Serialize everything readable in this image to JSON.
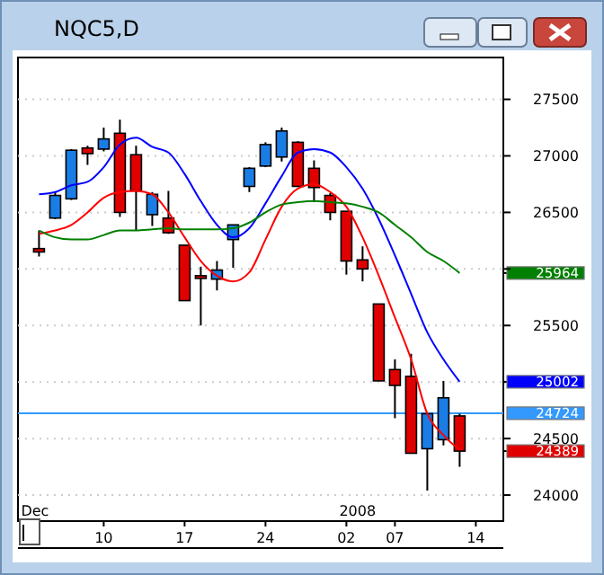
{
  "chart_data": {
    "type": "candlestick",
    "title": "NQC5,D",
    "categories": [
      null,
      null,
      null,
      null,
      null,
      "10",
      null,
      null,
      null,
      null,
      "17",
      null,
      null,
      null,
      null,
      "24",
      null,
      null,
      null,
      null,
      "02",
      null,
      null,
      "07",
      null,
      null,
      null,
      null,
      "14"
    ],
    "series": [
      {
        "ohlc": [
          null,
          [
            26180,
            26340,
            26110,
            26150
          ],
          [
            26450,
            26680,
            26440,
            26650
          ],
          [
            26620,
            27060,
            26610,
            27050
          ],
          [
            27070,
            27090,
            26920,
            27020
          ],
          [
            27060,
            27250,
            27040,
            27150
          ],
          [
            27200,
            27320,
            26460,
            26500
          ],
          [
            27010,
            27090,
            26340,
            26690
          ],
          [
            26480,
            26680,
            26380,
            26660
          ],
          [
            26450,
            26690,
            26310,
            26320
          ],
          [
            26210,
            26210,
            25720,
            25720
          ],
          [
            25940,
            26020,
            25500,
            25920
          ],
          [
            25910,
            26070,
            25810,
            25990
          ],
          [
            26260,
            26390,
            26010,
            26390
          ],
          [
            26730,
            26900,
            26680,
            26890
          ],
          [
            26910,
            27120,
            26900,
            27100
          ],
          [
            26990,
            27250,
            26950,
            27220
          ],
          [
            27120,
            27130,
            26730,
            26730
          ],
          [
            26890,
            26960,
            26590,
            26720
          ],
          [
            26650,
            26670,
            26430,
            26500
          ],
          [
            26510,
            26510,
            25950,
            26070
          ],
          [
            26080,
            26200,
            25890,
            26000
          ],
          [
            25690,
            25690,
            25010,
            25010
          ],
          [
            25110,
            25200,
            24680,
            24970
          ],
          [
            25050,
            25250,
            24370,
            24370
          ],
          [
            24410,
            24720,
            24040,
            24720
          ],
          [
            24490,
            25010,
            24440,
            24860
          ],
          [
            24700,
            24720,
            24250,
            24389
          ],
          null
        ],
        "colors": [
          null,
          "#e00000",
          "#1a7de6",
          "#1a7de6",
          "#e00000",
          "#1a7de6",
          "#e00000",
          "#e00000",
          "#1a7de6",
          "#e00000",
          "#e00000",
          "#e00000",
          "#1a7de6",
          "#1a7de6",
          "#1a7de6",
          "#1a7de6",
          "#1a7de6",
          "#e00000",
          "#e00000",
          "#e00000",
          "#e00000",
          "#e00000",
          "#e00000",
          "#e00000",
          "#e00000",
          "#1a7de6",
          "#1a7de6",
          "#e00000",
          null
        ]
      },
      {
        "type": "line",
        "color": "#0000ff",
        "values": [
          null,
          26660,
          26680,
          26740,
          26770,
          26900,
          27100,
          27160,
          27080,
          27030,
          26840,
          26600,
          26390,
          26280,
          26360,
          26580,
          26820,
          27030,
          27060,
          27030,
          26900,
          26710,
          26440,
          26120,
          25780,
          25440,
          25200,
          25002,
          null
        ]
      },
      {
        "type": "line",
        "color": "#ff0000",
        "values": [
          null,
          26310,
          26340,
          26390,
          26500,
          26630,
          26680,
          26690,
          26660,
          26500,
          26280,
          26070,
          25940,
          25890,
          25970,
          26260,
          26550,
          26710,
          26750,
          26680,
          26550,
          26280,
          25940,
          25570,
          25200,
          24720,
          24530,
          24400,
          null
        ]
      },
      {
        "type": "line",
        "color": "#008000",
        "values": [
          null,
          26340,
          26280,
          26260,
          26260,
          26300,
          26340,
          26340,
          26350,
          26360,
          26350,
          26350,
          26350,
          26360,
          26410,
          26500,
          26570,
          26590,
          26600,
          26590,
          26580,
          26550,
          26500,
          26390,
          26280,
          26150,
          26070,
          25964,
          null
        ]
      }
    ],
    "ylim": [
      23770,
      27870
    ],
    "yticks": [
      24000,
      24389,
      24500,
      {
        "value": 25000,
        "label": null
      },
      25002,
      25500,
      25964,
      {
        "value": 26000,
        "label": null
      },
      26500,
      27000,
      27500
    ],
    "ref_lines": [
      {
        "axis": "y",
        "value": 24724,
        "label": "24724",
        "color": "#3399ff"
      }
    ],
    "annotations": [
      "Dec",
      "2008"
    ],
    "grid": "y",
    "marker": "none",
    "line_style": "solid"
  }
}
